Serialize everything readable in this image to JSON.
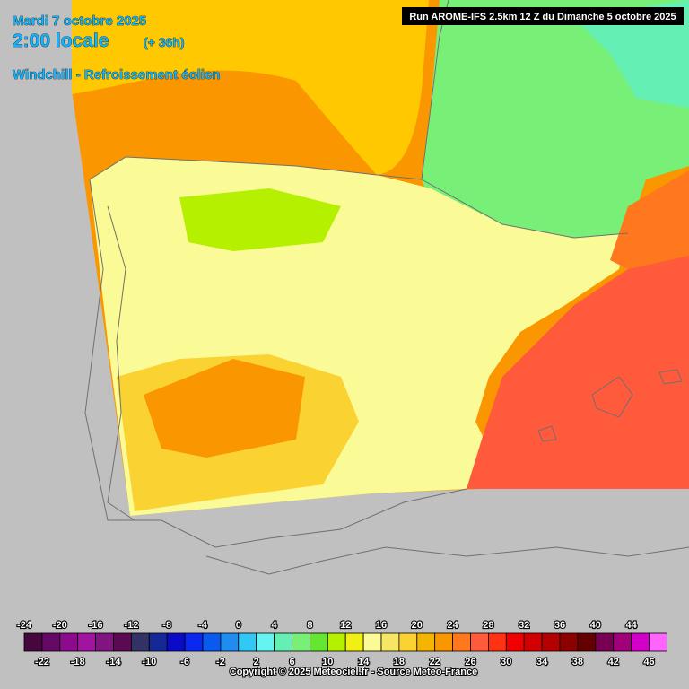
{
  "header": {
    "date": "Mardi 7 octobre 2025",
    "time": "2:00 locale",
    "lead": "(+ 36h)",
    "product": "Windchill - Refroissement éolien"
  },
  "run": "Run AROME-IFS 2.5km 12 Z du Dimanche 5 octobre 2025",
  "scale": {
    "values": [
      -24,
      -22,
      -20,
      -18,
      -16,
      -14,
      -12,
      -10,
      -8,
      -6,
      -4,
      -2,
      0,
      2,
      4,
      6,
      8,
      10,
      12,
      14,
      16,
      18,
      20,
      22,
      24,
      26,
      28,
      30,
      32,
      34,
      36,
      38,
      40,
      42,
      44,
      46
    ],
    "colors": [
      "#46083c",
      "#640a64",
      "#8c0a8c",
      "#a014a0",
      "#821482",
      "#5a0a50",
      "#323264",
      "#142896",
      "#0a0ac8",
      "#0a28f0",
      "#0a5af0",
      "#1e8cf0",
      "#32c8f5",
      "#64f5f0",
      "#64f0b4",
      "#78f078",
      "#64e632",
      "#b4f000",
      "#f0f014",
      "#fafa96",
      "#f5e664",
      "#fad232",
      "#f5b400",
      "#fa9600",
      "#ff781e",
      "#ff5a3c",
      "#ff3214",
      "#f00000",
      "#d20000",
      "#b40000",
      "#8c0000",
      "#640000",
      "#780050",
      "#a00078",
      "#d200c8",
      "#ff64ff"
    ]
  },
  "copyright": "Copyright © 2025 Meteociel.fr - Source Meteo-France"
}
